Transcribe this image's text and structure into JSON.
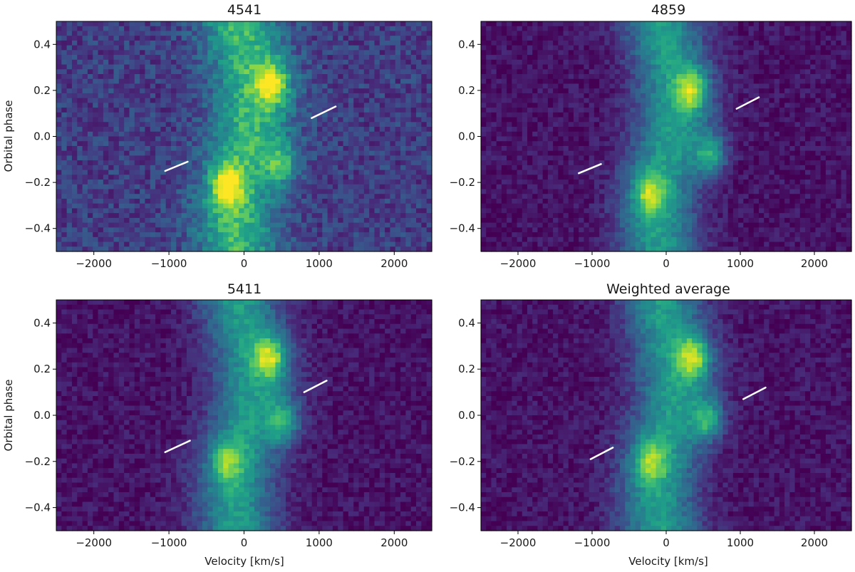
{
  "chart_data": [
    {
      "type": "heatmap",
      "title": "4541",
      "xlabel": "",
      "ylabel": "Orbital phase",
      "xlim": [
        -2500,
        2500
      ],
      "ylim": [
        -0.5,
        0.5
      ],
      "xticks": [
        -2000,
        -1000,
        0,
        1000,
        2000
      ],
      "xtick_labels": [
        "−2000",
        "−1000",
        "0",
        "1000",
        "2000"
      ],
      "yticks": [
        0.4,
        0.2,
        0.0,
        -0.2,
        -0.4
      ],
      "ytick_labels": [
        "0.4",
        "0.2",
        "0.0",
        "−0.2",
        "−0.4"
      ],
      "colormap": "viridis",
      "grid": false,
      "markers": [
        {
          "v1": -1050,
          "p1": -0.15,
          "v2": -750,
          "p2": -0.11
        },
        {
          "v1": 900,
          "p1": 0.08,
          "v2": 1220,
          "p2": 0.13
        }
      ],
      "emission_features": [
        {
          "velocity": 380,
          "phase": 0.23,
          "intensity": 0.95
        },
        {
          "velocity": -230,
          "phase": -0.22,
          "intensity": 0.9
        },
        {
          "velocity": 500,
          "phase": -0.12,
          "intensity": 0.7
        }
      ]
    },
    {
      "type": "heatmap",
      "title": "4859",
      "xlabel": "",
      "ylabel": "",
      "xlim": [
        -2500,
        2500
      ],
      "ylim": [
        -0.5,
        0.5
      ],
      "xticks": [
        -2000,
        -1000,
        0,
        1000,
        2000
      ],
      "xtick_labels": [
        "−2000",
        "−1000",
        "0",
        "1000",
        "2000"
      ],
      "yticks": [
        0.4,
        0.2,
        0.0,
        -0.2,
        -0.4
      ],
      "ytick_labels": [
        "0.4",
        "0.2",
        "0.0",
        "−0.2",
        "−0.4"
      ],
      "colormap": "viridis",
      "grid": false,
      "markers": [
        {
          "v1": -1180,
          "p1": -0.16,
          "v2": -880,
          "p2": -0.12
        },
        {
          "v1": 950,
          "p1": 0.12,
          "v2": 1250,
          "p2": 0.17
        }
      ],
      "emission_features": [
        {
          "velocity": 350,
          "phase": 0.2,
          "intensity": 0.9
        },
        {
          "velocity": 600,
          "phase": -0.08,
          "intensity": 0.8
        },
        {
          "velocity": -230,
          "phase": -0.25,
          "intensity": 0.75
        }
      ]
    },
    {
      "type": "heatmap",
      "title": "5411",
      "xlabel": "Velocity [km/s]",
      "ylabel": "Orbital phase",
      "xlim": [
        -2500,
        2500
      ],
      "ylim": [
        -0.5,
        0.5
      ],
      "xticks": [
        -2000,
        -1000,
        0,
        1000,
        2000
      ],
      "xtick_labels": [
        "−2000",
        "−1000",
        "0",
        "1000",
        "2000"
      ],
      "yticks": [
        0.4,
        0.2,
        0.0,
        -0.2,
        -0.4
      ],
      "ytick_labels": [
        "0.4",
        "0.2",
        "0.0",
        "−0.2",
        "−0.4"
      ],
      "colormap": "viridis",
      "grid": false,
      "markers": [
        {
          "v1": -1050,
          "p1": -0.16,
          "v2": -720,
          "p2": -0.11
        },
        {
          "v1": 800,
          "p1": 0.1,
          "v2": 1100,
          "p2": 0.15
        }
      ],
      "emission_features": [
        {
          "velocity": 350,
          "phase": 0.25,
          "intensity": 0.95
        },
        {
          "velocity": 520,
          "phase": -0.03,
          "intensity": 0.75
        },
        {
          "velocity": -230,
          "phase": -0.2,
          "intensity": 0.65
        }
      ]
    },
    {
      "type": "heatmap",
      "title": "Weighted average",
      "xlabel": "Velocity [km/s]",
      "ylabel": "",
      "xlim": [
        -2500,
        2500
      ],
      "ylim": [
        -0.5,
        0.5
      ],
      "xticks": [
        -2000,
        -1000,
        0,
        1000,
        2000
      ],
      "xtick_labels": [
        "−2000",
        "−1000",
        "0",
        "1000",
        "2000"
      ],
      "yticks": [
        0.4,
        0.2,
        0.0,
        -0.2,
        -0.4
      ],
      "ytick_labels": [
        "0.4",
        "0.2",
        "0.0",
        "−0.2",
        "−0.4"
      ],
      "colormap": "viridis",
      "grid": false,
      "markers": [
        {
          "v1": -1020,
          "p1": -0.19,
          "v2": -720,
          "p2": -0.14
        },
        {
          "v1": 1040,
          "p1": 0.07,
          "v2": 1340,
          "p2": 0.12
        }
      ],
      "emission_features": [
        {
          "velocity": 370,
          "phase": 0.25,
          "intensity": 0.98
        },
        {
          "velocity": 560,
          "phase": -0.02,
          "intensity": 0.8
        },
        {
          "velocity": -220,
          "phase": -0.2,
          "intensity": 0.75
        }
      ]
    }
  ]
}
